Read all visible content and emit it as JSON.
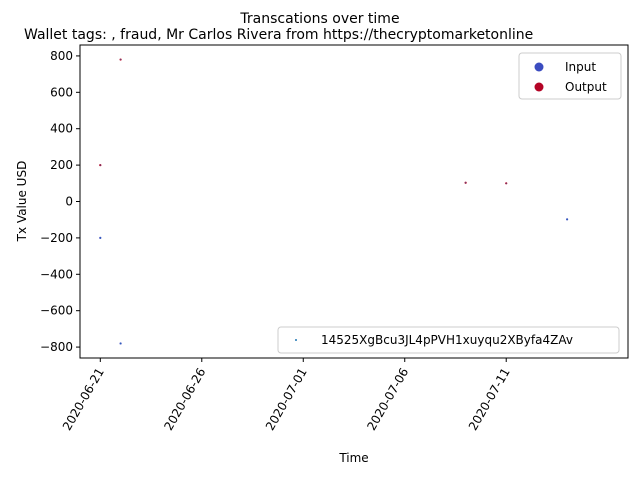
{
  "chart_data": {
    "type": "scatter",
    "title": "Transcations over time",
    "subtitle": "Wallet tags: , fraud, Mr Carlos Rivera from    https://thecryptomarketonline",
    "xlabel": "Time",
    "ylabel": "Tx Value USD",
    "x_ticks": [
      "2020-06-21",
      "2020-06-26",
      "2020-07-01",
      "2020-07-06",
      "2020-07-11"
    ],
    "y_ticks": [
      -800,
      -600,
      -400,
      -200,
      0,
      200,
      400,
      600,
      800
    ],
    "xlim": [
      "2020-06-20",
      "2020-07-17"
    ],
    "ylim": [
      -860,
      860
    ],
    "grid": false,
    "colors": {
      "Input": "#3b4cc0",
      "Output": "#b40426"
    },
    "points": [
      {
        "date": "2020-06-21",
        "value": 200,
        "type": "Output"
      },
      {
        "date": "2020-06-21",
        "value": -200,
        "type": "Input"
      },
      {
        "date": "2020-06-22",
        "value": 780,
        "type": "Output"
      },
      {
        "date": "2020-06-22",
        "value": -780,
        "type": "Input"
      },
      {
        "date": "2020-07-09",
        "value": 103,
        "type": "Output"
      },
      {
        "date": "2020-07-11",
        "value": 100,
        "type": "Output"
      },
      {
        "date": "2020-07-14",
        "value": -98,
        "type": "Input"
      }
    ],
    "legend_types": {
      "placement": "top-right",
      "entries": [
        {
          "label": "Input",
          "color": "#3b4cc0"
        },
        {
          "label": "Output",
          "color": "#b40426"
        }
      ]
    },
    "legend_address": {
      "placement": "lower-right",
      "label": "14525XgBcu3JL4pPVH1xuyqu2XByfa4ZAv",
      "color": "#1f77b4"
    }
  }
}
